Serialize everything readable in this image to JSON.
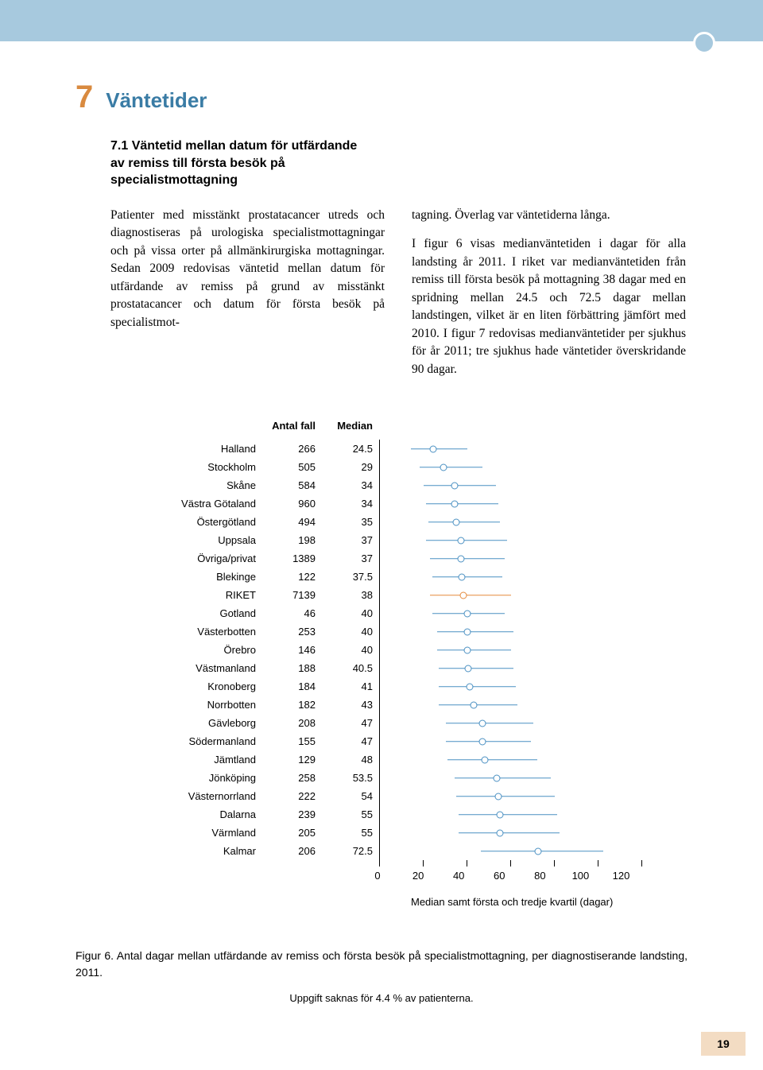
{
  "chapter": {
    "number": "7",
    "title": "Väntetider"
  },
  "section": {
    "number": "7.1",
    "title": "Väntetid mellan datum för utfärdande av remiss till första besök på specialistmottagning"
  },
  "body": {
    "col1": "Patienter med misstänkt prostatacancer utreds och diagnostiseras på urologiska specialistmottagningar och på vissa orter på allmänkirurgiska mottagningar. Sedan 2009 redovisas väntetid mellan datum för utfärdande av remiss på grund av misstänkt prostatacancer och datum för första besök på specialistmot-",
    "col2": "tagning. Överlag var väntetiderna långa.\n\nI figur 6 visas medianväntetiden i dagar för alla landsting år 2011. I riket var medianväntetiden från remiss till första besök på mottagning 38 dagar med en spridning mellan 24.5 och 72.5 dagar mellan landstingen, vilket är en liten förbättring jämfört med 2010. I figur 7 redovisas medianväntetider per sjukhus för år 2011; tre sjukhus hade väntetider överskridande 90 dagar."
  },
  "chart": {
    "headers": {
      "antal": "Antal fall",
      "median": "Median"
    },
    "xmax": 120,
    "xtick_step": 20,
    "xticks": [
      "0",
      "20",
      "40",
      "60",
      "80",
      "100",
      "120"
    ],
    "axis_caption": "Median samt första och tredje kvartil (dagar)",
    "colors": {
      "normal_line": "#4a90c2",
      "normal_dot": "#4a90c2",
      "riket_line": "#e58a3c",
      "riket_dot": "#e58a3c"
    },
    "rows": [
      {
        "name": "Halland",
        "antal": "266",
        "median": 24.5,
        "q1": 14,
        "q3": 40,
        "riket": false
      },
      {
        "name": "Stockholm",
        "antal": "505",
        "median": 29,
        "q1": 18,
        "q3": 47,
        "riket": false
      },
      {
        "name": "Skåne",
        "antal": "584",
        "median": 34,
        "q1": 20,
        "q3": 53,
        "riket": false
      },
      {
        "name": "Västra Götaland",
        "antal": "960",
        "median": 34,
        "q1": 21,
        "q3": 54,
        "riket": false
      },
      {
        "name": "Östergötland",
        "antal": "494",
        "median": 35,
        "q1": 22,
        "q3": 55,
        "riket": false
      },
      {
        "name": "Uppsala",
        "antal": "198",
        "median": 37,
        "q1": 21,
        "q3": 58,
        "riket": false
      },
      {
        "name": "Övriga/privat",
        "antal": "1389",
        "median": 37,
        "q1": 23,
        "q3": 57,
        "riket": false
      },
      {
        "name": "Blekinge",
        "antal": "122",
        "median": 37.5,
        "q1": 24,
        "q3": 56,
        "riket": false
      },
      {
        "name": "RIKET",
        "antal": "7139",
        "median": 38,
        "q1": 23,
        "q3": 60,
        "riket": true
      },
      {
        "name": "Gotland",
        "antal": "46",
        "median": 40,
        "q1": 24,
        "q3": 57,
        "riket": false
      },
      {
        "name": "Västerbotten",
        "antal": "253",
        "median": 40,
        "q1": 26,
        "q3": 61,
        "riket": false
      },
      {
        "name": "Örebro",
        "antal": "146",
        "median": 40,
        "q1": 26,
        "q3": 60,
        "riket": false
      },
      {
        "name": "Västmanland",
        "antal": "188",
        "median": 40.5,
        "q1": 27,
        "q3": 61,
        "riket": false
      },
      {
        "name": "Kronoberg",
        "antal": "184",
        "median": 41,
        "q1": 27,
        "q3": 62,
        "riket": false
      },
      {
        "name": "Norrbotten",
        "antal": "182",
        "median": 43,
        "q1": 27,
        "q3": 63,
        "riket": false
      },
      {
        "name": "Gävleborg",
        "antal": "208",
        "median": 47,
        "q1": 30,
        "q3": 70,
        "riket": false
      },
      {
        "name": "Södermanland",
        "antal": "155",
        "median": 47,
        "q1": 30,
        "q3": 69,
        "riket": false
      },
      {
        "name": "Jämtland",
        "antal": "129",
        "median": 48,
        "q1": 31,
        "q3": 72,
        "riket": false
      },
      {
        "name": "Jönköping",
        "antal": "258",
        "median": 53.5,
        "q1": 34,
        "q3": 78,
        "riket": false
      },
      {
        "name": "Västernorrland",
        "antal": "222",
        "median": 54,
        "q1": 35,
        "q3": 80,
        "riket": false
      },
      {
        "name": "Dalarna",
        "antal": "239",
        "median": 55,
        "q1": 36,
        "q3": 81,
        "riket": false
      },
      {
        "name": "Värmland",
        "antal": "205",
        "median": 55,
        "q1": 36,
        "q3": 82,
        "riket": false
      },
      {
        "name": "Kalmar",
        "antal": "206",
        "median": 72.5,
        "q1": 46,
        "q3": 102,
        "riket": false
      }
    ]
  },
  "figure": {
    "caption": "Figur 6. Antal dagar mellan utfärdande av remiss och första besök på specialistmottagning, per diagnostiserande landsting, 2011.",
    "note": "Uppgift saknas för 4.4 % av patienterna."
  },
  "page_number": "19"
}
